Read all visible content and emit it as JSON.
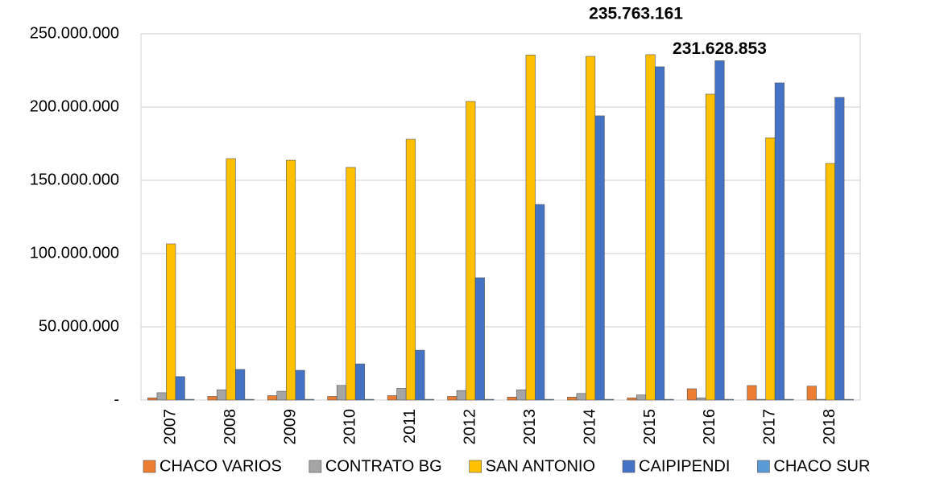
{
  "chart_data": {
    "type": "bar",
    "categories": [
      "2007",
      "2008",
      "2009",
      "2010",
      "2011",
      "2012",
      "2013",
      "2014",
      "2015",
      "2016",
      "2017",
      "2018"
    ],
    "series": [
      {
        "name": "CHACO VARIOS",
        "color": "#ED7D31",
        "values": [
          1500000,
          2500000,
          3000000,
          2500000,
          3000000,
          2500000,
          2000000,
          2000000,
          1500000,
          7700000,
          9900000,
          9500000
        ]
      },
      {
        "name": "CONTRATO BG",
        "color": "#A5A5A5",
        "values": [
          5000000,
          7000000,
          6000000,
          10000000,
          8000000,
          6500000,
          7000000,
          4500000,
          3500000,
          1500000,
          500000,
          500000
        ]
      },
      {
        "name": "SAN ANTONIO",
        "color": "#FFC000",
        "values": [
          106600000,
          164800000,
          163700000,
          158800000,
          178000000,
          203800000,
          235500000,
          234600000,
          235763161,
          208800000,
          179000000,
          161500000
        ],
        "value_labels": [
          null,
          null,
          null,
          null,
          null,
          null,
          null,
          null,
          "235.763.161",
          null,
          null,
          null
        ]
      },
      {
        "name": "CAIPIPENDI",
        "color": "#4472C4",
        "values": [
          16000000,
          20900000,
          20300000,
          24700000,
          34000000,
          83500000,
          133500000,
          194000000,
          227500000,
          231628853,
          216500000,
          206600000
        ],
        "value_labels": [
          null,
          null,
          null,
          null,
          null,
          null,
          null,
          null,
          null,
          "231.628.853",
          null,
          null
        ]
      },
      {
        "name": "CHACO SUR",
        "color": "#5B9BD5",
        "values": [
          500000,
          500000,
          500000,
          500000,
          500000,
          500000,
          500000,
          500000,
          500000,
          500000,
          500000,
          500000
        ]
      }
    ],
    "ylim": [
      0,
      250000000
    ],
    "yticks": [
      {
        "value": 0,
        "label": "-"
      },
      {
        "value": 50000000,
        "label": "50.000.000"
      },
      {
        "value": 100000000,
        "label": "100.000.000"
      },
      {
        "value": 150000000,
        "label": "150.000.000"
      },
      {
        "value": 200000000,
        "label": "200.000.000"
      },
      {
        "value": 250000000,
        "label": "250.000.000"
      }
    ],
    "grid": true,
    "legend": "bottom"
  }
}
